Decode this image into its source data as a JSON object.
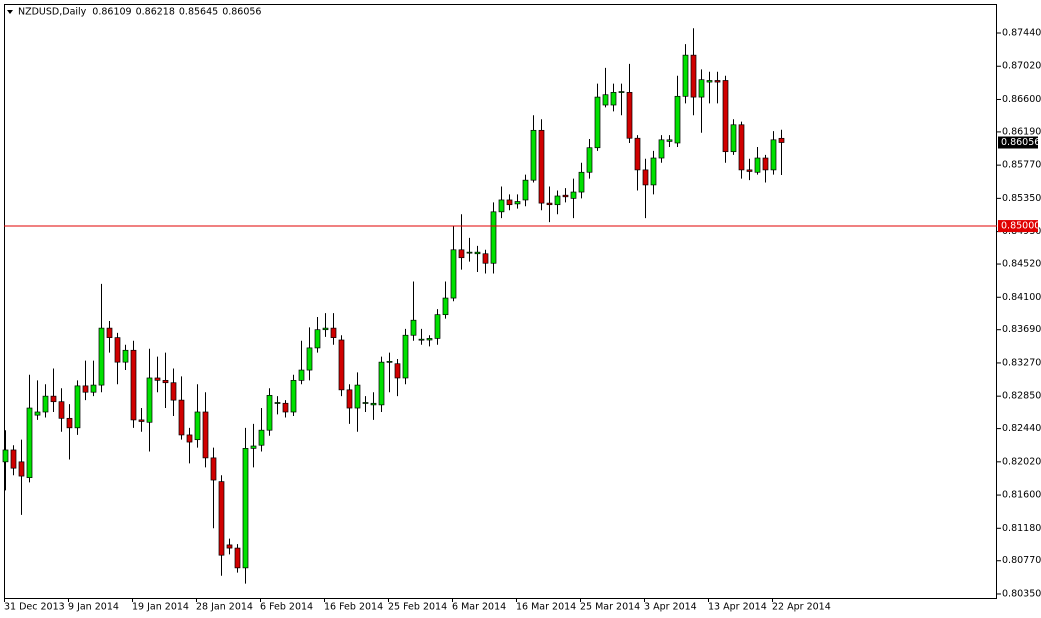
{
  "chart_data": {
    "type": "candlestick",
    "title": "NZDUSD,Daily",
    "categories": [
      "31 Dec 2013",
      null,
      null,
      null,
      null,
      null,
      null,
      null,
      "9 Jan 2014",
      null,
      null,
      null,
      null,
      null,
      null,
      null,
      "19 Jan 2014",
      null,
      null,
      null,
      null,
      null,
      null,
      null,
      "28 Jan 2014",
      null,
      null,
      null,
      null,
      null,
      null,
      null,
      "6 Feb 2014",
      null,
      null,
      null,
      null,
      null,
      null,
      null,
      "16 Feb 2014",
      null,
      null,
      null,
      null,
      null,
      null,
      null,
      "25 Feb 2014",
      null,
      null,
      null,
      null,
      null,
      null,
      null,
      "6 Mar 2014",
      null,
      null,
      null,
      null,
      null,
      null,
      null,
      "16 Mar 2014",
      null,
      null,
      null,
      null,
      null,
      null,
      null,
      "25 Mar 2014",
      null,
      null,
      null,
      null,
      null,
      null,
      null,
      "3 Apr 2014",
      null,
      null,
      null,
      null,
      null,
      null,
      null,
      "13 Apr 2014",
      null,
      null,
      null,
      null,
      null,
      null,
      null,
      "22 Apr 2014",
      null
    ],
    "open": [
      0.8202,
      0.8217,
      0.8202,
      0.8182,
      0.8261,
      0.8265,
      0.8285,
      0.8278,
      0.8257,
      0.8245,
      0.8298,
      0.829,
      0.8299,
      0.8371,
      0.8359,
      0.8328,
      0.8343,
      0.8255,
      0.8252,
      0.8308,
      0.8305,
      0.8302,
      0.828,
      0.8236,
      0.823,
      0.8265,
      0.8207,
      0.8177,
      0.8097,
      0.8093,
      0.8068,
      0.8219,
      0.8223,
      0.8242,
      0.8276,
      0.8276,
      0.8265,
      0.8305,
      0.8318,
      0.8346,
      0.8369,
      0.8371,
      0.8356,
      0.8293,
      0.827,
      0.8276,
      0.8274,
      0.8274,
      0.8328,
      0.8326,
      0.8308,
      0.8362,
      0.8356,
      0.8356,
      0.8358,
      0.8388,
      0.8409,
      0.847,
      0.8466,
      0.8465,
      0.8465,
      0.8453,
      0.8518,
      0.8533,
      0.8528,
      0.8533,
      0.8558,
      0.8621,
      0.8529,
      0.8527,
      0.8539,
      0.8535,
      0.8543,
      0.8568,
      0.8599,
      0.8653,
      0.8653,
      0.8669,
      0.8669,
      0.8611,
      0.8571,
      0.8552,
      0.8586,
      0.8607,
      0.8605,
      0.8664,
      0.8716,
      0.8663,
      0.8682,
      0.8684,
      0.8684,
      0.8594,
      0.8628,
      0.8571,
      0.8568,
      0.8586,
      0.8571,
      0.86109
    ],
    "high": [
      0.8242,
      0.8223,
      0.823,
      0.8312,
      0.8305,
      0.83,
      0.832,
      0.8295,
      0.8275,
      0.8305,
      0.833,
      0.833,
      0.8427,
      0.838,
      0.8365,
      0.835,
      0.8355,
      0.827,
      0.8345,
      0.8335,
      0.834,
      0.832,
      0.831,
      0.8245,
      0.83,
      0.829,
      0.822,
      0.8185,
      0.8105,
      0.8098,
      0.8245,
      0.825,
      0.827,
      0.8295,
      0.8285,
      0.828,
      0.8312,
      0.8355,
      0.8372,
      0.8385,
      0.839,
      0.839,
      0.8362,
      0.83,
      0.8315,
      0.8285,
      0.829,
      0.8335,
      0.834,
      0.8332,
      0.837,
      0.843,
      0.837,
      0.8362,
      0.8395,
      0.843,
      0.85,
      0.8515,
      0.8485,
      0.8475,
      0.847,
      0.853,
      0.855,
      0.854,
      0.854,
      0.8565,
      0.864,
      0.8635,
      0.855,
      0.8545,
      0.8548,
      0.856,
      0.858,
      0.861,
      0.868,
      0.87,
      0.868,
      0.868,
      0.8705,
      0.8615,
      0.8585,
      0.8595,
      0.8615,
      0.8615,
      0.869,
      0.873,
      0.875,
      0.8698,
      0.8695,
      0.8695,
      0.869,
      0.8635,
      0.8632,
      0.8585,
      0.86,
      0.859,
      0.862,
      0.86218
    ],
    "low": [
      0.8166,
      0.8185,
      0.8135,
      0.8176,
      0.8255,
      0.8258,
      0.8265,
      0.824,
      0.8205,
      0.8236,
      0.828,
      0.8285,
      0.829,
      0.834,
      0.83,
      0.8318,
      0.8245,
      0.824,
      0.8215,
      0.829,
      0.827,
      0.826,
      0.823,
      0.82,
      0.822,
      0.8195,
      0.8118,
      0.8058,
      0.8085,
      0.8062,
      0.8048,
      0.8195,
      0.8215,
      0.8235,
      0.8262,
      0.8258,
      0.826,
      0.83,
      0.8305,
      0.834,
      0.836,
      0.835,
      0.8285,
      0.825,
      0.824,
      0.8265,
      0.8255,
      0.8265,
      0.829,
      0.8285,
      0.83,
      0.8355,
      0.835,
      0.8348,
      0.835,
      0.8383,
      0.8405,
      0.8445,
      0.8455,
      0.8442,
      0.844,
      0.844,
      0.851,
      0.852,
      0.8522,
      0.8525,
      0.8555,
      0.852,
      0.8505,
      0.8515,
      0.853,
      0.851,
      0.8535,
      0.856,
      0.8595,
      0.865,
      0.8645,
      0.864,
      0.8605,
      0.8545,
      0.851,
      0.854,
      0.858,
      0.86,
      0.86,
      0.8655,
      0.864,
      0.8618,
      0.8655,
      0.8655,
      0.858,
      0.859,
      0.856,
      0.8558,
      0.8565,
      0.8555,
      0.8565,
      0.85645
    ],
    "close": [
      0.8217,
      0.8194,
      0.8184,
      0.827,
      0.8265,
      0.8285,
      0.8278,
      0.8257,
      0.8245,
      0.8298,
      0.829,
      0.8299,
      0.8371,
      0.8359,
      0.8328,
      0.8343,
      0.8255,
      0.8253,
      0.8308,
      0.8305,
      0.8302,
      0.828,
      0.8236,
      0.8227,
      0.8265,
      0.8207,
      0.8179,
      0.8084,
      0.8093,
      0.8068,
      0.8219,
      0.8222,
      0.8242,
      0.8286,
      0.8277,
      0.8265,
      0.8305,
      0.8318,
      0.8346,
      0.8369,
      0.8371,
      0.8359,
      0.8293,
      0.827,
      0.8299,
      0.8277,
      0.8276,
      0.8328,
      0.8329,
      0.8308,
      0.8362,
      0.8381,
      0.8357,
      0.8358,
      0.8388,
      0.8409,
      0.847,
      0.846,
      0.8467,
      0.8467,
      0.8453,
      0.8518,
      0.8533,
      0.8527,
      0.8531,
      0.8558,
      0.8621,
      0.8529,
      0.8527,
      0.8538,
      0.8537,
      0.8543,
      0.8568,
      0.8599,
      0.8663,
      0.8666,
      0.8669,
      0.867,
      0.8611,
      0.8571,
      0.8552,
      0.8586,
      0.8609,
      0.8609,
      0.8664,
      0.8716,
      0.8663,
      0.8685,
      0.8684,
      0.8682,
      0.8594,
      0.8628,
      0.8571,
      0.8569,
      0.8586,
      0.8571,
      0.8609,
      0.86056
    ],
    "up_color": "#00e000",
    "down_color": "#d00000",
    "wick_color": "#000000",
    "ylim": [
      0.80299,
      0.87794
    ],
    "yticks": [
      {
        "value": 0.8744,
        "label": "0.87440"
      },
      {
        "value": 0.8702,
        "label": "0.87020"
      },
      {
        "value": 0.866,
        "label": "0.86600"
      },
      {
        "value": 0.8619,
        "label": "0.86190"
      },
      {
        "value": 0.8577,
        "label": "0.85770"
      },
      {
        "value": 0.8535,
        "label": "0.85350"
      },
      {
        "value": 0.8493,
        "label": "0.84930"
      },
      {
        "value": 0.8452,
        "label": "0.84520"
      },
      {
        "value": 0.841,
        "label": "0.84100"
      },
      {
        "value": 0.8369,
        "label": "0.83690"
      },
      {
        "value": 0.8327,
        "label": "0.83270"
      },
      {
        "value": 0.8285,
        "label": "0.82850"
      },
      {
        "value": 0.8244,
        "label": "0.82440"
      },
      {
        "value": 0.8202,
        "label": "0.82020"
      },
      {
        "value": 0.816,
        "label": "0.81600"
      },
      {
        "value": 0.8118,
        "label": "0.81180"
      },
      {
        "value": 0.8077,
        "label": "0.80770"
      },
      {
        "value": 0.8035,
        "label": "0.80350"
      }
    ],
    "hline": {
      "value": 0.85,
      "label": "0.85000",
      "color": "#e00000"
    },
    "grid": false
  }
}
